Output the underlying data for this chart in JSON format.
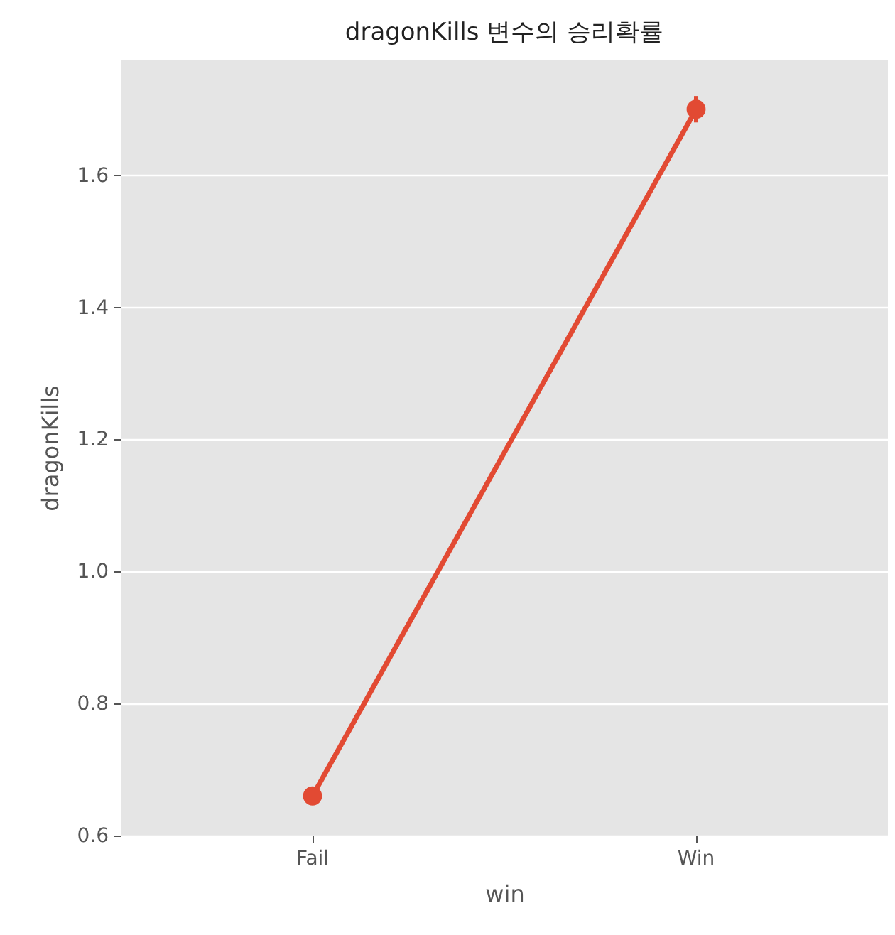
{
  "chart_data": {
    "type": "line",
    "title": "dragonKills 변수의 승리확률",
    "xlabel": "win",
    "ylabel": "dragonKills",
    "categories": [
      "Fail",
      "Win"
    ],
    "series": [
      {
        "color": "#e24a33",
        "values": [
          0.66,
          1.7
        ],
        "errors": [
          0.01,
          0.02
        ]
      }
    ],
    "ylim": [
      0.6,
      1.775
    ],
    "yticks": [
      0.6,
      0.8,
      {
        "value": 1,
        "label": "1.0"
      },
      1.2,
      1.4,
      1.6
    ],
    "grid": true,
    "marker": "circle",
    "line_style": "solid"
  }
}
